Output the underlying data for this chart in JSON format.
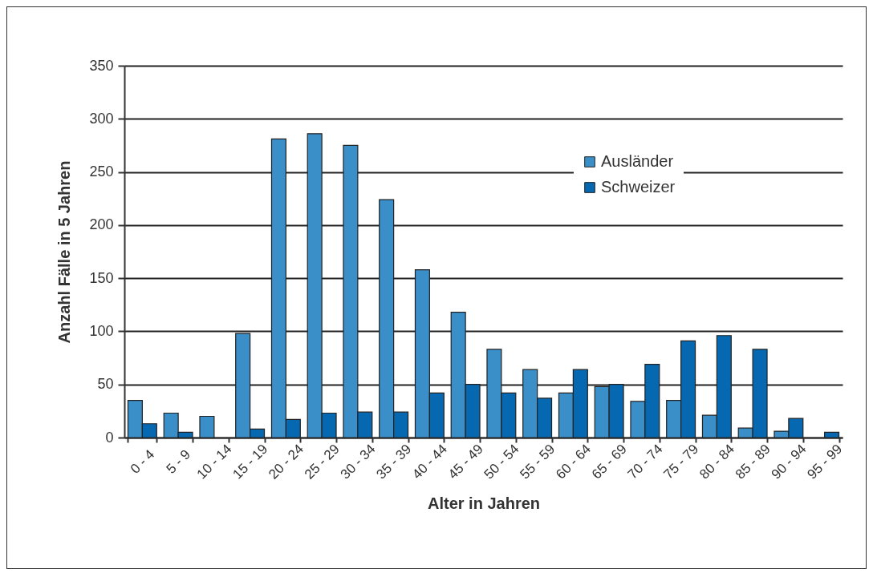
{
  "chart_data": {
    "type": "bar",
    "xlabel": "Alter in Jahren",
    "ylabel": "Anzahl Fälle in 5 Jahren",
    "categories": [
      "0 - 4",
      "5 - 9",
      "10 - 14",
      "15 - 19",
      "20 - 24",
      "25 - 29",
      "30 - 34",
      "35 - 39",
      "40 - 44",
      "45 - 49",
      "50 - 54",
      "55 - 59",
      "60 - 64",
      "65 - 69",
      "70 - 74",
      "75 - 79",
      "80 - 84",
      "85 - 89",
      "90 - 94",
      "95 - 99"
    ],
    "series": [
      {
        "name": "Ausländer",
        "color": "#3a8fc8",
        "values": [
          35,
          23,
          20,
          98,
          281,
          286,
          275,
          224,
          158,
          118,
          83,
          64,
          42,
          48,
          34,
          35,
          21,
          9,
          6,
          null
        ]
      },
      {
        "name": "Schweizer",
        "color": "#0568b0",
        "values": [
          13,
          5,
          null,
          8,
          17,
          23,
          24,
          24,
          42,
          50,
          42,
          37,
          64,
          50,
          69,
          91,
          96,
          83,
          18,
          5
        ]
      }
    ],
    "ylim": [
      0,
      350
    ],
    "yticks": [
      0,
      50,
      100,
      150,
      200,
      250,
      300,
      350
    ],
    "grid": "y",
    "legend": "top right"
  }
}
